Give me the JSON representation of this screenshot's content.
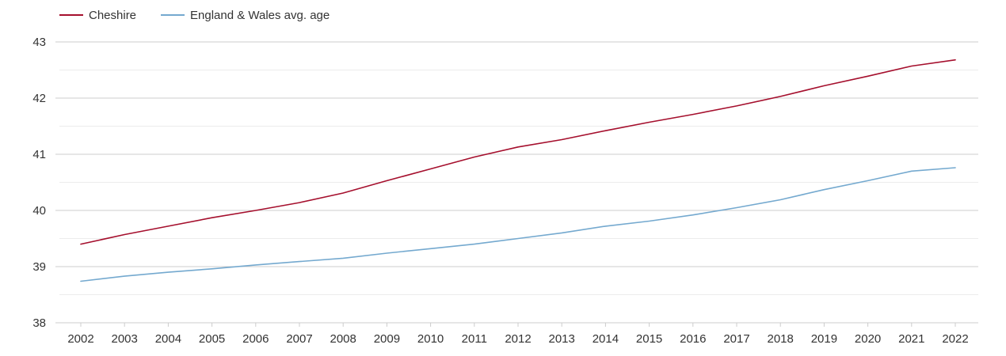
{
  "chart_data": {
    "type": "line",
    "title": "",
    "xlabel": "",
    "ylabel": "",
    "x": [
      2002,
      2003,
      2004,
      2005,
      2006,
      2007,
      2008,
      2009,
      2010,
      2011,
      2012,
      2013,
      2014,
      2015,
      2016,
      2017,
      2018,
      2019,
      2020,
      2021,
      2022
    ],
    "ylim": [
      38,
      43
    ],
    "yticks": [
      38,
      39,
      40,
      41,
      42,
      43
    ],
    "grid": true,
    "legend_position": "top-left",
    "series": [
      {
        "name": "Cheshire",
        "color": "#a50f2d",
        "values": [
          39.4,
          39.57,
          39.72,
          39.87,
          40.0,
          40.14,
          40.31,
          40.53,
          40.74,
          40.95,
          41.13,
          41.26,
          41.42,
          41.57,
          41.71,
          41.86,
          42.03,
          42.22,
          42.39,
          42.57,
          42.68
        ]
      },
      {
        "name": "England & Wales avg. age",
        "color": "#74a9cf",
        "values": [
          38.74,
          38.83,
          38.9,
          38.96,
          39.03,
          39.09,
          39.15,
          39.24,
          39.32,
          39.4,
          39.5,
          39.6,
          39.72,
          39.81,
          39.92,
          40.05,
          40.19,
          40.37,
          40.53,
          40.7,
          40.76
        ]
      }
    ]
  }
}
